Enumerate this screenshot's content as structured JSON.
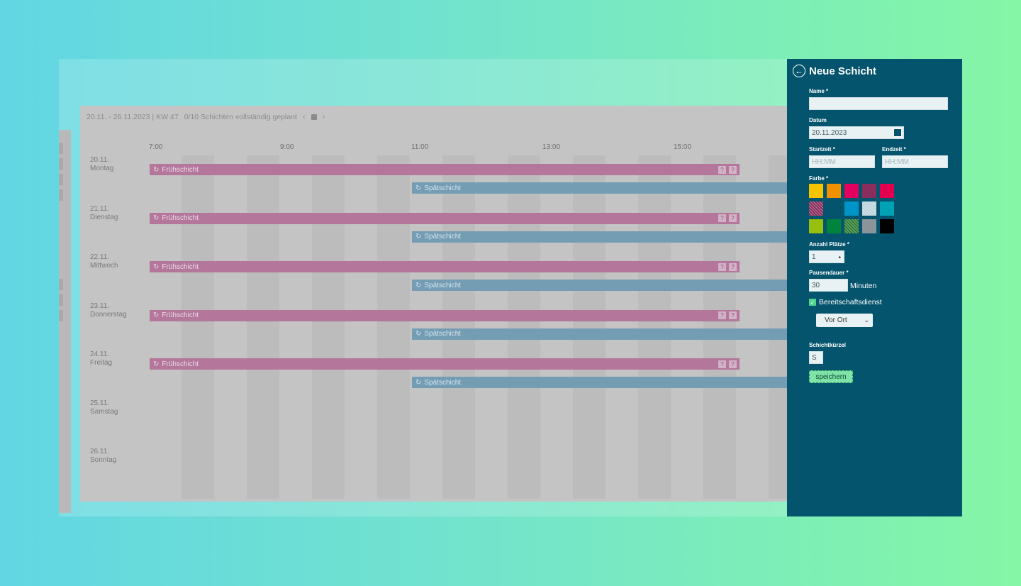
{
  "calendar": {
    "range": "20.11. - 26.11.2023 | KW 47",
    "status": "0/10 Schichten vollständig geplant",
    "nav_prev": "‹",
    "nav_next": "›",
    "times": [
      "7:00",
      "9:00",
      "11:00",
      "13:00",
      "15:00"
    ],
    "days": [
      {
        "date": "20.11.",
        "name": "Montag"
      },
      {
        "date": "21.11.",
        "name": "Dienstag"
      },
      {
        "date": "22.11.",
        "name": "Mittwoch"
      },
      {
        "date": "23.11.",
        "name": "Donnerstag"
      },
      {
        "date": "24.11.",
        "name": "Freitag"
      },
      {
        "date": "25.11.",
        "name": "Samstag"
      },
      {
        "date": "26.11.",
        "name": "Sonntag"
      }
    ],
    "early_label": "Frühschicht",
    "late_label": "Spätschicht",
    "question": "?",
    "shift_icon": "repeat-icon",
    "colors": {
      "early": "#b4769b",
      "late": "#749db4"
    }
  },
  "panel": {
    "title": "Neue Schicht",
    "back_icon": "arrow-left-circle-icon",
    "name_label": "Name *",
    "name_value": "",
    "date_label": "Datum",
    "date_value": "20.11.2023",
    "start_label": "Startzeit *",
    "start_placeholder": "HH:MM",
    "end_label": "Endzeit *",
    "end_placeholder": "HH:MM",
    "color_label": "Farbe *",
    "swatches": [
      "#f5c400",
      "#f29100",
      "#e3005f",
      "#8a2f5d",
      "#e3004f",
      "#8a2f5d",
      "",
      "#0095c8",
      "#bcd4dc",
      "#00a2b5",
      "#97bf0d",
      "#00843d",
      "#2e7d32",
      "#8a959a",
      "#000000"
    ],
    "places_label": "Anzahl Plätze *",
    "places_value": "1",
    "break_label": "Pausendauer *",
    "break_value": "30",
    "break_unit": "Minuten",
    "standby_label": "Bereitschaftsdienst",
    "standby_checked": true,
    "standby_option": "Vor Ort",
    "short_label": "Schichtkürzel",
    "short_value": "S",
    "save_label": "speichern"
  }
}
